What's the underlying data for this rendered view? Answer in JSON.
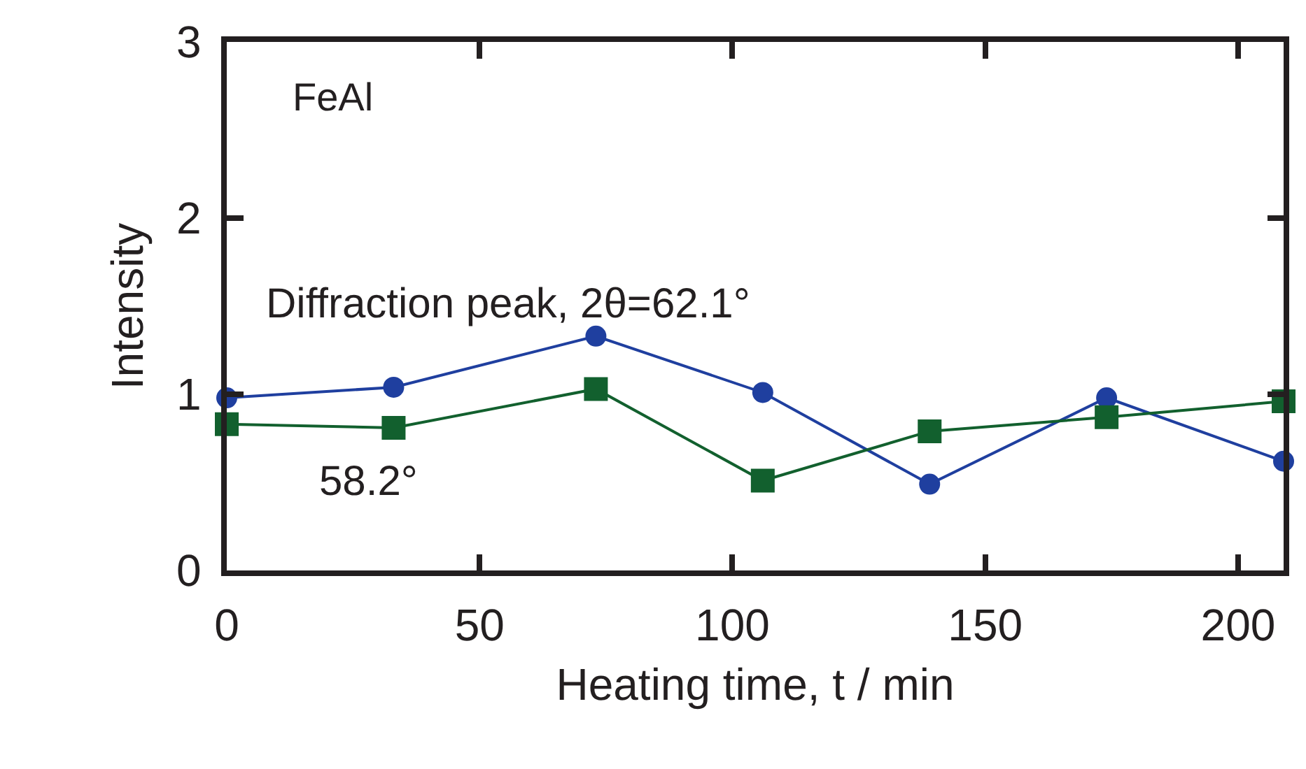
{
  "chart_data": {
    "type": "line",
    "xlabel": "Heating time, t / min",
    "ylabel": "Intensity",
    "x": [
      0,
      33,
      73,
      106,
      139,
      174,
      209
    ],
    "series": [
      {
        "name": "Diffraction peak, 2θ=62.1°",
        "color": "#1f3f9f",
        "marker": "circle",
        "values": [
          0.98,
          1.04,
          1.33,
          1.01,
          0.49,
          0.98,
          0.62
        ]
      },
      {
        "name": "58.2°",
        "color": "#12602e",
        "marker": "square",
        "values": [
          0.83,
          0.81,
          1.03,
          0.51,
          0.79,
          0.87,
          0.96
        ]
      }
    ],
    "annotations": [
      "FeAl"
    ],
    "xlim": [
      0,
      209
    ],
    "xticks": [
      0,
      50,
      100,
      150,
      200
    ],
    "ylim": [
      0,
      3
    ],
    "yticks": [
      0,
      1,
      2,
      3
    ],
    "legend": false
  }
}
